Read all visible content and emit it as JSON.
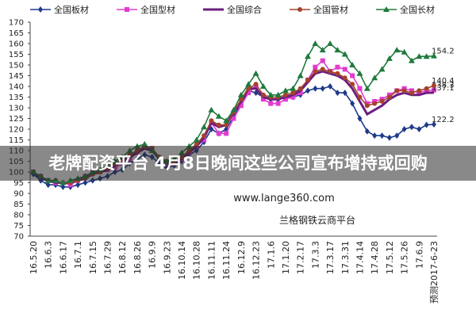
{
  "chart_data": {
    "type": "line",
    "categories": [
      "16.5.20",
      null,
      "16.6.3",
      null,
      "16.6.17",
      null,
      "16.7.1",
      null,
      "16.7.15",
      null,
      "16.7.29",
      null,
      "16.8.12",
      null,
      "16.8.26",
      null,
      "16.9.9",
      null,
      "16.9.23",
      null,
      "16.10.14",
      null,
      "16.10.28",
      null,
      "16.11.11",
      null,
      "16.11.24",
      null,
      "16.12.9",
      null,
      "16.12.23",
      null,
      "17.1.6",
      null,
      "17.1.20",
      null,
      "17.2.17",
      null,
      "17.3.3",
      null,
      "17.3.17",
      null,
      "17.3.31",
      null,
      "17.4.14",
      null,
      "17.4.28",
      null,
      "17.5.12",
      null,
      "17.5.26",
      null,
      "17.6.9",
      null,
      "预测2017-6-23"
    ],
    "series": [
      {
        "name": "全国板材",
        "color": "#1f3a8a",
        "marker": "diamond",
        "values": [
          99,
          96,
          94,
          94,
          93,
          93,
          94,
          95,
          96,
          97,
          98,
          100,
          101,
          104,
          106,
          108,
          107,
          104,
          102,
          103,
          105,
          108,
          110,
          114,
          120,
          118,
          120,
          126,
          132,
          138,
          137,
          135,
          134,
          134,
          135,
          135,
          136,
          138,
          139,
          139,
          140,
          137,
          137,
          132,
          125,
          119,
          117,
          117,
          116,
          117,
          120,
          121,
          120,
          122,
          122.2
        ]
      },
      {
        "name": "全国型材",
        "color": "#e23bd0",
        "marker": "square",
        "values": [
          100,
          98,
          96,
          95,
          95,
          94,
          96,
          98,
          100,
          100,
          101,
          102,
          104,
          106,
          109,
          112,
          111,
          106,
          104,
          104,
          106,
          109,
          112,
          115,
          123,
          118,
          118,
          125,
          131,
          137,
          140,
          134,
          132,
          132,
          134,
          135,
          137,
          143,
          149,
          152,
          147,
          149,
          148,
          145,
          139,
          132,
          133,
          134,
          136,
          138,
          139,
          138,
          137,
          138,
          138.3
        ]
      },
      {
        "name": "全国综合",
        "color": "#6b1d7e",
        "marker": "none",
        "values": [
          100,
          97,
          96,
          95,
          95,
          95,
          96,
          97,
          99,
          100,
          101,
          103,
          105,
          107,
          109,
          111,
          110,
          106,
          104,
          104,
          106,
          109,
          112,
          116,
          123,
          121,
          122,
          128,
          133,
          139,
          139,
          135,
          134,
          134,
          135,
          136,
          138,
          142,
          146,
          147,
          146,
          145,
          143,
          139,
          133,
          127,
          129,
          131,
          134,
          136,
          137,
          136,
          136,
          137,
          137.1
        ]
      },
      {
        "name": "全国管材",
        "color": "#a4432b",
        "marker": "circle",
        "values": [
          100,
          98,
          96,
          96,
          95,
          95,
          96,
          97,
          99,
          100,
          102,
          104,
          106,
          108,
          110,
          112,
          111,
          107,
          105,
          105,
          107,
          110,
          113,
          117,
          124,
          122,
          122,
          128,
          134,
          139,
          141,
          136,
          135,
          135,
          136,
          137,
          139,
          143,
          147,
          148,
          147,
          146,
          144,
          141,
          135,
          131,
          132,
          133,
          135,
          138,
          138,
          137,
          138,
          139,
          140.4
        ]
      },
      {
        "name": "全国长材",
        "color": "#1f7a3c",
        "marker": "triangle",
        "values": [
          100,
          98,
          96,
          96,
          95,
          96,
          97,
          98,
          100,
          101,
          103,
          105,
          107,
          110,
          112,
          113,
          110,
          106,
          105,
          106,
          109,
          112,
          115,
          121,
          129,
          126,
          124,
          129,
          136,
          141,
          146,
          140,
          136,
          136,
          138,
          139,
          145,
          154,
          160,
          157,
          160,
          157,
          155,
          150,
          146,
          139,
          144,
          148,
          153,
          157,
          156,
          152,
          154,
          154,
          154.2
        ]
      }
    ],
    "ylim": [
      70,
      170
    ],
    "yticks": [
      70,
      75,
      80,
      85,
      90,
      95,
      100,
      105,
      110,
      115,
      120,
      125,
      130,
      135,
      140,
      145,
      150,
      155,
      160,
      165,
      170
    ],
    "grid": false,
    "end_labels": true,
    "legend": "top",
    "annotations": [
      "www.lange360.com",
      "兰格钢铁云商平台"
    ]
  },
  "overlay_caption": "老牌配资平台 4月8日晚间这些公司宣布增持或回购"
}
